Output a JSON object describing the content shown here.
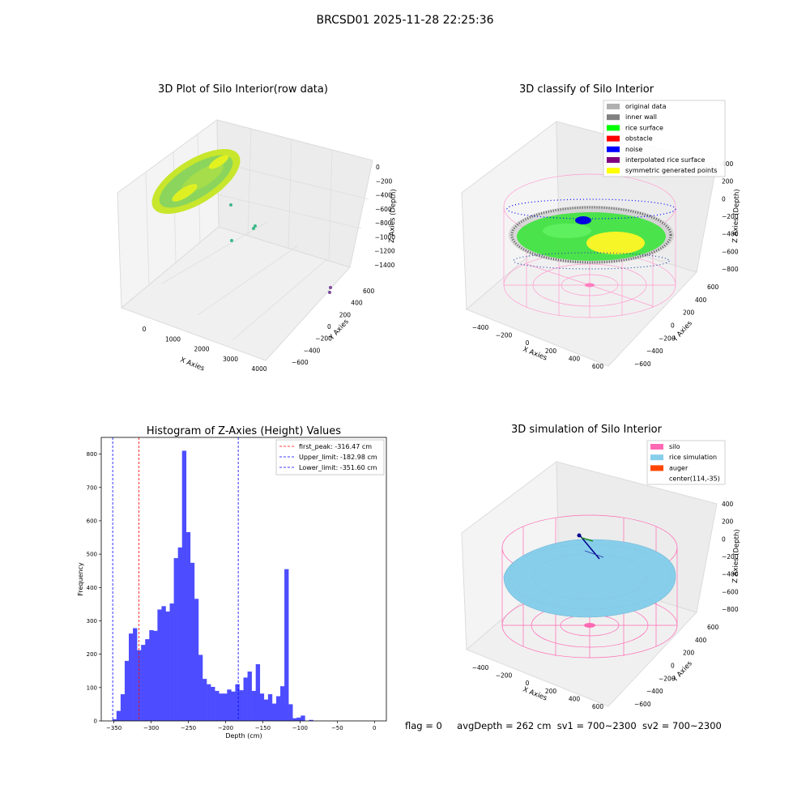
{
  "figure": {
    "title": "BRCSD01 2025-11-28 22:25:36"
  },
  "status_line": {
    "flag": "flag = 0",
    "avg_depth": "avgDepth = 262 cm",
    "sv1": "sv1 = 700~2300",
    "sv2": "sv2 = 700~2300"
  },
  "panels": {
    "raw": {
      "title": "3D Plot of Silo Interior(row data)",
      "xlabel": "X Axies",
      "ylabel": "Y Axies",
      "zlabel": "Z Axies (Depth)",
      "x_ticks": [
        "0",
        "1000",
        "2000",
        "3000",
        "4000"
      ],
      "y_ticks": [
        "600",
        "400",
        "200",
        "0",
        "−200",
        "−400",
        "−600"
      ],
      "z_ticks": [
        "0",
        "−200",
        "−400",
        "−600",
        "−800",
        "−1000",
        "−1200",
        "−1400"
      ]
    },
    "classify": {
      "title": "3D classify of Silo Interior",
      "xlabel": "X Axies",
      "ylabel": "Y Axies",
      "zlabel": "Z Axies (Depth)",
      "x_ticks": [
        "−400",
        "−200",
        "0",
        "200",
        "400",
        "600"
      ],
      "y_ticks": [
        "600",
        "400",
        "200",
        "0",
        "−200",
        "−400",
        "−600"
      ],
      "z_ticks": [
        "400",
        "200",
        "0",
        "−200",
        "−400",
        "−600",
        "−800"
      ],
      "legend": [
        {
          "label": "original data",
          "color": "#b0b0b0"
        },
        {
          "label": "inner wall",
          "color": "#808080"
        },
        {
          "label": "rice surface",
          "color": "#00ff00"
        },
        {
          "label": "obstacle",
          "color": "#ff0000"
        },
        {
          "label": "noise",
          "color": "#0000ff"
        },
        {
          "label": "interpolated rice surface",
          "color": "#800080"
        },
        {
          "label": "symmetric generated points",
          "color": "#ffff00"
        }
      ]
    },
    "simulation": {
      "title": "3D simulation of Silo Interior",
      "xlabel": "X Axies",
      "ylabel": "Y Axies",
      "zlabel": "Z Axies (Depth)",
      "x_ticks": [
        "−400",
        "−200",
        "0",
        "200",
        "400",
        "600"
      ],
      "y_ticks": [
        "600",
        "400",
        "200",
        "0",
        "−200",
        "−400",
        "−600"
      ],
      "z_ticks": [
        "400",
        "200",
        "0",
        "−200",
        "−400",
        "−600",
        "−800"
      ],
      "legend": [
        {
          "label": "silo",
          "color": "#ff69b4"
        },
        {
          "label": "rice simulation",
          "color": "#87ceeb"
        },
        {
          "label": "auger",
          "color": "#ff4500"
        },
        {
          "label": "center(114,-35)",
          "color": ""
        }
      ]
    }
  },
  "chart_data": {
    "type": "bar",
    "title": "Histogram of Z-Axies (Height) Values",
    "xlabel": "Depth (cm)",
    "ylabel": "Frequency",
    "xlim": [
      -367,
      16
    ],
    "ylim": [
      0,
      850
    ],
    "x_ticks": [
      -350,
      -300,
      -250,
      -200,
      -150,
      -100,
      -50,
      0
    ],
    "y_ticks": [
      0,
      100,
      200,
      300,
      400,
      500,
      600,
      700,
      800
    ],
    "bin_start": -352,
    "bin_width": 5.5,
    "values": [
      5,
      30,
      80,
      180,
      262,
      278,
      212,
      228,
      245,
      272,
      270,
      334,
      344,
      328,
      352,
      488,
      520,
      810,
      566,
      474,
      366,
      198,
      126,
      110,
      102,
      90,
      82,
      82,
      94,
      88,
      110,
      92,
      130,
      148,
      90,
      170,
      82,
      64,
      80,
      52,
      74,
      104,
      455,
      50,
      8,
      10,
      16,
      0,
      3
    ],
    "reference_lines": [
      {
        "label": "first_peak: -316.47 cm",
        "x": -316.47,
        "color": "#ff0000"
      },
      {
        "label": "Upper_limit: -182.98 cm",
        "x": -182.98,
        "color": "#0000ff"
      },
      {
        "label": "Lower_limit: -351.60 cm",
        "x": -351.6,
        "color": "#0000ff"
      }
    ],
    "bar_color": "#4d4dff",
    "legend_position": "upper right"
  }
}
